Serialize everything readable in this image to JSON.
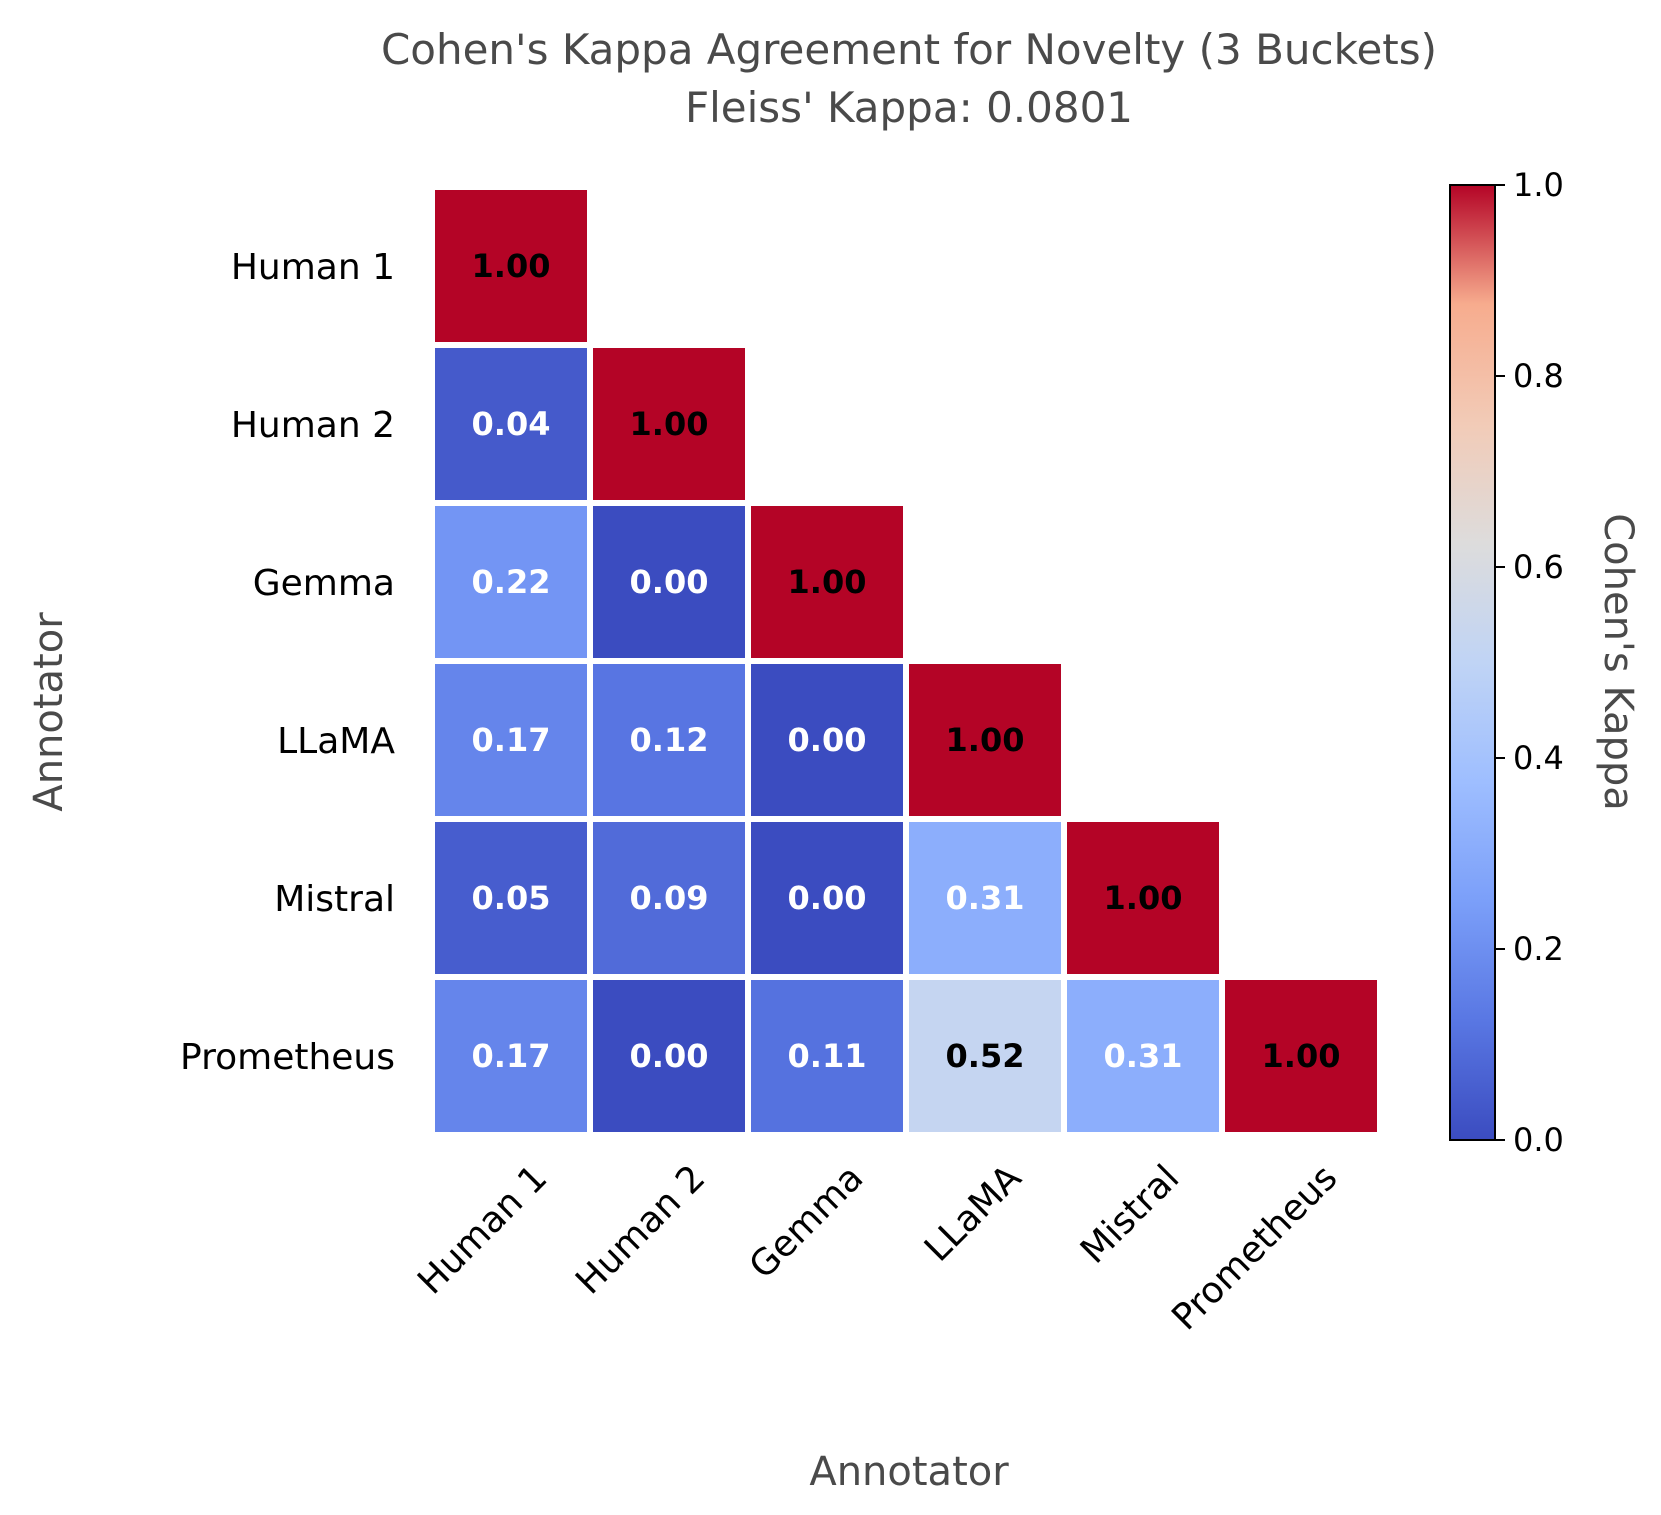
{
  "chart_data": {
    "type": "heatmap",
    "title": "Cohen's Kappa Agreement for Novelty (3 Buckets)",
    "subtitle": "Fleiss' Kappa: 0.0801",
    "xlabel": "Annotator",
    "ylabel": "Annotator",
    "categories": [
      "Human 1",
      "Human 2",
      "Gemma",
      "LLaMA",
      "Mistral",
      "Prometheus"
    ],
    "matrix": [
      [
        1.0,
        null,
        null,
        null,
        null,
        null
      ],
      [
        0.04,
        1.0,
        null,
        null,
        null,
        null
      ],
      [
        0.22,
        0.0,
        1.0,
        null,
        null,
        null
      ],
      [
        0.17,
        0.12,
        0.0,
        1.0,
        null,
        null
      ],
      [
        0.05,
        0.09,
        0.0,
        0.31,
        1.0,
        null
      ],
      [
        0.17,
        0.0,
        0.11,
        0.52,
        0.31,
        1.0
      ]
    ],
    "value_format": "0.00",
    "colormap": "coolwarm",
    "colorbar": {
      "label": "Cohen's Kappa",
      "range": [
        0.0,
        1.0
      ],
      "ticks": [
        "0.0",
        "0.2",
        "0.4",
        "0.6",
        "0.8",
        "1.0"
      ]
    }
  }
}
